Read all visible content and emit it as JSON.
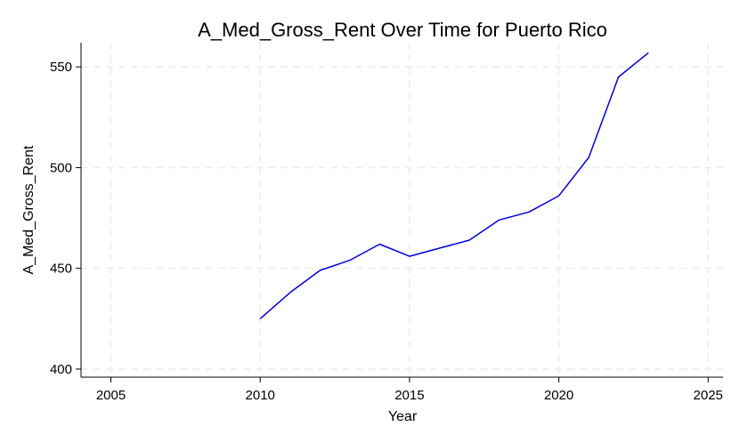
{
  "chart_data": {
    "type": "line",
    "title": "A_Med_Gross_Rent Over Time for Puerto Rico",
    "xlabel": "Year",
    "ylabel": "A_Med_Gross_Rent",
    "xlim": [
      2004,
      2025.5
    ],
    "ylim": [
      396,
      562
    ],
    "xticks": [
      2005,
      2010,
      2015,
      2020,
      2025
    ],
    "yticks": [
      400,
      450,
      500,
      550
    ],
    "grid": true,
    "line_color": "#0000dd",
    "series": [
      {
        "x": [
          2010,
          2011,
          2012,
          2013,
          2014,
          2015,
          2016,
          2017,
          2018,
          2019,
          2020,
          2021,
          2022,
          2023
        ],
        "values": [
          425,
          438,
          449,
          454,
          462,
          456,
          460,
          464,
          474,
          478,
          486,
          505,
          545,
          557
        ]
      }
    ]
  }
}
